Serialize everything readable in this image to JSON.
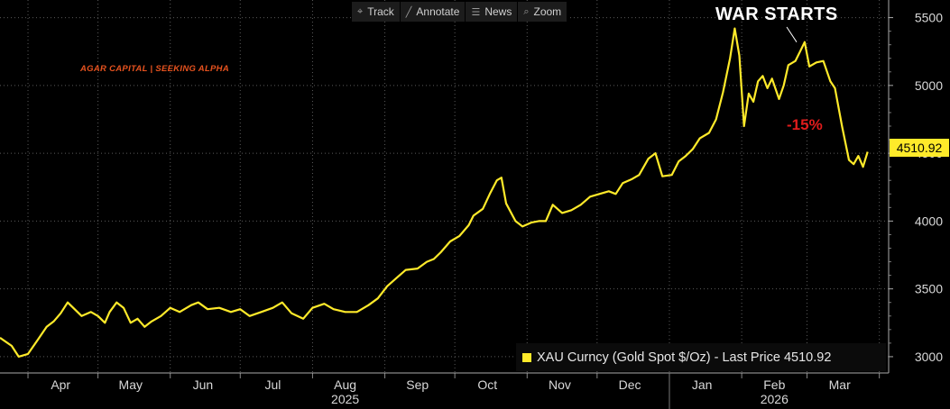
{
  "toolbar": {
    "items": [
      {
        "label": "Track",
        "icon": "crosshair-icon"
      },
      {
        "label": "Annotate",
        "icon": "pencil-icon"
      },
      {
        "label": "News",
        "icon": "news-icon"
      },
      {
        "label": "Zoom",
        "icon": "magnifier-icon"
      }
    ]
  },
  "annotations": {
    "watermark": "AGAR CAPITAL | SEEKING ALPHA",
    "war_label": "WAR STARTS",
    "drop_label": "-15%"
  },
  "legend": {
    "text": "XAU Curncy (Gold Spot  $/Oz) - Last Price 4510.92",
    "swatch_color": "#ffea2a"
  },
  "last_price_label": "4510.92",
  "chart_data": {
    "type": "line",
    "series": [
      {
        "name": "XAU Curncy (Gold Spot $/Oz) - Last Price",
        "color": "#ffea2a",
        "points": [
          [
            "2025-03-20",
            3140
          ],
          [
            "2025-03-25",
            3080
          ],
          [
            "2025-03-28",
            3000
          ],
          [
            "2025-04-01",
            3020
          ],
          [
            "2025-04-05",
            3120
          ],
          [
            "2025-04-09",
            3220
          ],
          [
            "2025-04-12",
            3260
          ],
          [
            "2025-04-15",
            3320
          ],
          [
            "2025-04-18",
            3400
          ],
          [
            "2025-04-21",
            3350
          ],
          [
            "2025-04-24",
            3300
          ],
          [
            "2025-04-28",
            3330
          ],
          [
            "2025-05-01",
            3300
          ],
          [
            "2025-05-04",
            3250
          ],
          [
            "2025-05-06",
            3330
          ],
          [
            "2025-05-09",
            3400
          ],
          [
            "2025-05-12",
            3360
          ],
          [
            "2025-05-15",
            3250
          ],
          [
            "2025-05-18",
            3280
          ],
          [
            "2025-05-21",
            3220
          ],
          [
            "2025-05-24",
            3260
          ],
          [
            "2025-05-28",
            3300
          ],
          [
            "2025-06-01",
            3360
          ],
          [
            "2025-06-05",
            3330
          ],
          [
            "2025-06-10",
            3380
          ],
          [
            "2025-06-13",
            3400
          ],
          [
            "2025-06-17",
            3350
          ],
          [
            "2025-06-22",
            3360
          ],
          [
            "2025-06-27",
            3330
          ],
          [
            "2025-07-01",
            3350
          ],
          [
            "2025-07-05",
            3300
          ],
          [
            "2025-07-10",
            3330
          ],
          [
            "2025-07-15",
            3360
          ],
          [
            "2025-07-19",
            3400
          ],
          [
            "2025-07-23",
            3320
          ],
          [
            "2025-07-28",
            3280
          ],
          [
            "2025-08-01",
            3360
          ],
          [
            "2025-08-06",
            3390
          ],
          [
            "2025-08-10",
            3350
          ],
          [
            "2025-08-15",
            3330
          ],
          [
            "2025-08-20",
            3330
          ],
          [
            "2025-08-25",
            3380
          ],
          [
            "2025-08-29",
            3430
          ],
          [
            "2025-09-02",
            3520
          ],
          [
            "2025-09-06",
            3580
          ],
          [
            "2025-09-10",
            3640
          ],
          [
            "2025-09-15",
            3650
          ],
          [
            "2025-09-19",
            3700
          ],
          [
            "2025-09-22",
            3720
          ],
          [
            "2025-09-25",
            3770
          ],
          [
            "2025-09-29",
            3850
          ],
          [
            "2025-10-03",
            3890
          ],
          [
            "2025-10-07",
            3970
          ],
          [
            "2025-10-09",
            4040
          ],
          [
            "2025-10-13",
            4090
          ],
          [
            "2025-10-16",
            4200
          ],
          [
            "2025-10-19",
            4300
          ],
          [
            "2025-10-21",
            4320
          ],
          [
            "2025-10-23",
            4130
          ],
          [
            "2025-10-27",
            4000
          ],
          [
            "2025-10-30",
            3960
          ],
          [
            "2025-11-03",
            3990
          ],
          [
            "2025-11-06",
            4000
          ],
          [
            "2025-11-09",
            4000
          ],
          [
            "2025-11-12",
            4120
          ],
          [
            "2025-11-16",
            4060
          ],
          [
            "2025-11-20",
            4080
          ],
          [
            "2025-11-24",
            4120
          ],
          [
            "2025-11-28",
            4180
          ],
          [
            "2025-12-02",
            4200
          ],
          [
            "2025-12-06",
            4220
          ],
          [
            "2025-12-09",
            4200
          ],
          [
            "2025-12-12",
            4280
          ],
          [
            "2025-12-16",
            4310
          ],
          [
            "2025-12-19",
            4340
          ],
          [
            "2025-12-23",
            4460
          ],
          [
            "2025-12-26",
            4500
          ],
          [
            "2025-12-29",
            4330
          ],
          [
            "2026-01-02",
            4340
          ],
          [
            "2026-01-05",
            4440
          ],
          [
            "2026-01-08",
            4480
          ],
          [
            "2026-01-11",
            4530
          ],
          [
            "2026-01-14",
            4610
          ],
          [
            "2026-01-18",
            4650
          ],
          [
            "2026-01-21",
            4750
          ],
          [
            "2026-01-24",
            4950
          ],
          [
            "2026-01-27",
            5200
          ],
          [
            "2026-01-29",
            5420
          ],
          [
            "2026-01-31",
            5220
          ],
          [
            "2026-02-02",
            4700
          ],
          [
            "2026-02-04",
            4940
          ],
          [
            "2026-02-06",
            4880
          ],
          [
            "2026-02-08",
            5030
          ],
          [
            "2026-02-10",
            5070
          ],
          [
            "2026-02-12",
            4980
          ],
          [
            "2026-02-14",
            5050
          ],
          [
            "2026-02-17",
            4900
          ],
          [
            "2026-02-19",
            5000
          ],
          [
            "2026-02-21",
            5150
          ],
          [
            "2026-02-24",
            5180
          ],
          [
            "2026-02-26",
            5250
          ],
          [
            "2026-02-28",
            5320
          ],
          [
            "2026-03-02",
            5140
          ],
          [
            "2026-03-05",
            5170
          ],
          [
            "2026-03-08",
            5180
          ],
          [
            "2026-03-11",
            5030
          ],
          [
            "2026-03-13",
            4980
          ],
          [
            "2026-03-16",
            4700
          ],
          [
            "2026-03-19",
            4450
          ],
          [
            "2026-03-21",
            4420
          ],
          [
            "2026-03-23",
            4480
          ],
          [
            "2026-03-25",
            4400
          ],
          [
            "2026-03-27",
            4510.92
          ]
        ]
      }
    ],
    "y_ticks": [
      3000,
      3500,
      4000,
      4500,
      5000,
      5500
    ],
    "ylim": [
      2880,
      5630
    ],
    "x_ticks": [
      {
        "date": "2025-04-15",
        "label": "Apr"
      },
      {
        "date": "2025-05-15",
        "label": "May"
      },
      {
        "date": "2025-06-15",
        "label": "Jun"
      },
      {
        "date": "2025-07-15",
        "label": "Jul"
      },
      {
        "date": "2025-08-15",
        "label": "Aug"
      },
      {
        "date": "2025-09-15",
        "label": "Sep"
      },
      {
        "date": "2025-10-15",
        "label": "Oct"
      },
      {
        "date": "2025-11-15",
        "label": "Nov"
      },
      {
        "date": "2025-12-15",
        "label": "Dec"
      },
      {
        "date": "2026-01-15",
        "label": "Jan"
      },
      {
        "date": "2026-02-15",
        "label": "Feb"
      },
      {
        "date": "2026-03-15",
        "label": "Mar"
      }
    ],
    "year_labels": [
      {
        "date": "2025-08-15",
        "label": "2025"
      },
      {
        "date": "2026-02-15",
        "label": "2026"
      }
    ],
    "xlim": [
      "2025-03-20",
      "2026-04-05"
    ],
    "grid": true
  }
}
